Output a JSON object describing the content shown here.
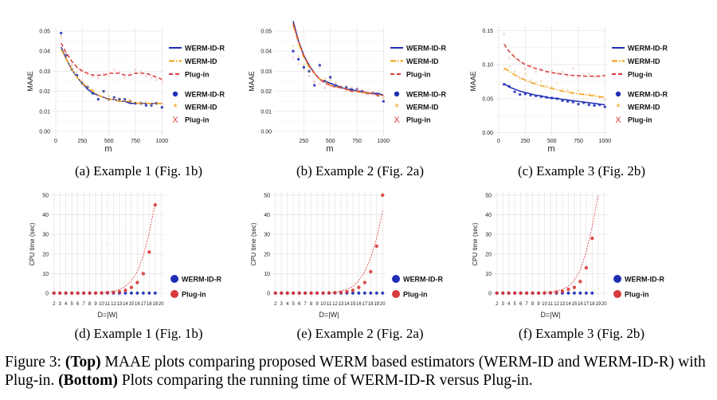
{
  "colors": {
    "werm_id_r": "#1f2fb5",
    "werm_id": "#f39c12",
    "plugin": "#d83b3b",
    "plugin_light": "#f2b3b3",
    "grid": "#e6e6e6"
  },
  "legend_top": {
    "lines": [
      "WERM-ID-R",
      "WERM-ID",
      "Plug-in"
    ],
    "points": [
      "WERM-ID-R",
      "WERM-ID",
      "Plug-in"
    ]
  },
  "legend_bottom": [
    "WERM-ID-R",
    "Plug-in"
  ],
  "captions": {
    "a": "(a) Example 1 (Fig. 1b)",
    "b": "(b) Example 2 (Fig. 2a)",
    "c": "(c) Example 3 (Fig. 2b)",
    "d": "(d) Example 1 (Fig. 1b)",
    "e": "(e) Example 2 (Fig. 2a)",
    "f": "(f) Example 3 (Fig. 2b)"
  },
  "figure_caption": {
    "label": "Figure 3:",
    "top_bold": "(Top)",
    "top_text": "MAAE plots comparing proposed WERM based estimators (WERM-ID and WERM-ID-R) with Plug-in.",
    "bottom_bold": "(Bottom)",
    "bottom_text": "Plots comparing the running time of WERM-ID-R versus Plug-in."
  },
  "chart_data": [
    {
      "id": "a",
      "type": "scatter",
      "title": "",
      "xlabel": "m",
      "ylabel": "MAAE",
      "xlim": [
        -30,
        1020
      ],
      "ylim": [
        -0.002,
        0.052
      ],
      "xticks": [
        0,
        250,
        500,
        750,
        1000
      ],
      "yticks": [
        0,
        0.01,
        0.02,
        0.03,
        0.04,
        0.05
      ],
      "ytick_labels": [
        "0.00",
        "0.01",
        "0.02",
        "0.03",
        "0.04",
        "0.05"
      ],
      "x": [
        50,
        100,
        150,
        200,
        250,
        300,
        350,
        400,
        450,
        500,
        550,
        600,
        650,
        700,
        750,
        800,
        850,
        900,
        950,
        1000
      ],
      "series": [
        {
          "name": "WERM-ID-R",
          "points": [
            0.049,
            0.038,
            0.031,
            0.028,
            0.024,
            0.022,
            0.019,
            0.016,
            0.02,
            0.016,
            0.017,
            0.016,
            0.016,
            0.015,
            0.014,
            0.014,
            0.013,
            0.013,
            0.014,
            0.012
          ],
          "fit": [
            0.042,
            0.036,
            0.031,
            0.027,
            0.024,
            0.021,
            0.019,
            0.018,
            0.017,
            0.016,
            0.016,
            0.015,
            0.015,
            0.014,
            0.014,
            0.014,
            0.014,
            0.014,
            0.014,
            0.014
          ]
        },
        {
          "name": "WERM-ID",
          "points": [
            0.047,
            0.037,
            0.032,
            0.029,
            0.025,
            0.022,
            0.02,
            0.017,
            0.019,
            0.017,
            0.016,
            0.016,
            0.015,
            0.015,
            0.014,
            0.014,
            0.014,
            0.013,
            0.013,
            0.013
          ],
          "fit": [
            0.041,
            0.036,
            0.031,
            0.027,
            0.024,
            0.022,
            0.02,
            0.018,
            0.017,
            0.016,
            0.016,
            0.015,
            0.015,
            0.015,
            0.014,
            0.014,
            0.014,
            0.014,
            0.014,
            0.014
          ]
        },
        {
          "name": "Plug-in",
          "points": [
            0.047,
            0.039,
            0.034,
            0.032,
            0.031,
            0.029,
            0.028,
            0.027,
            0.029,
            0.028,
            0.031,
            0.03,
            0.027,
            0.029,
            0.031,
            0.03,
            0.028,
            0.027,
            0.026,
            0.025
          ],
          "fit": [
            0.044,
            0.039,
            0.035,
            0.032,
            0.03,
            0.029,
            0.028,
            0.028,
            0.028,
            0.029,
            0.029,
            0.029,
            0.028,
            0.028,
            0.029,
            0.029,
            0.029,
            0.028,
            0.027,
            0.026
          ]
        }
      ]
    },
    {
      "id": "b",
      "type": "scatter",
      "title": "",
      "xlabel": "m",
      "ylabel": "MAAE",
      "xlim": [
        -30,
        1020
      ],
      "ylim": [
        -0.002,
        0.052
      ],
      "xticks": [
        250,
        500,
        750,
        1000
      ],
      "yticks": [
        0,
        0.01,
        0.02,
        0.03,
        0.04,
        0.05
      ],
      "ytick_labels": [
        "0.00",
        "0.01",
        "0.02",
        "0.03",
        "0.04",
        "0.05"
      ],
      "x": [
        150,
        200,
        250,
        300,
        350,
        400,
        450,
        500,
        550,
        600,
        650,
        700,
        750,
        800,
        850,
        900,
        950,
        1000
      ],
      "series": [
        {
          "name": "WERM-ID-R",
          "points": [
            0.04,
            0.036,
            0.032,
            0.03,
            0.023,
            0.033,
            0.025,
            0.027,
            0.023,
            0.022,
            0.022,
            0.021,
            0.021,
            0.02,
            0.019,
            0.019,
            0.018,
            0.015
          ],
          "fit": [
            0.055,
            0.045,
            0.038,
            0.033,
            0.029,
            0.026,
            0.025,
            0.024,
            0.023,
            0.022,
            0.021,
            0.021,
            0.02,
            0.02,
            0.019,
            0.019,
            0.019,
            0.018
          ]
        },
        {
          "name": "WERM-ID",
          "points": [
            0.042,
            0.037,
            0.033,
            0.029,
            0.024,
            0.031,
            0.026,
            0.025,
            0.024,
            0.022,
            0.022,
            0.021,
            0.02,
            0.02,
            0.019,
            0.019,
            0.018,
            0.016
          ],
          "fit": [
            0.053,
            0.044,
            0.037,
            0.032,
            0.029,
            0.026,
            0.025,
            0.023,
            0.022,
            0.022,
            0.021,
            0.02,
            0.02,
            0.019,
            0.019,
            0.019,
            0.018,
            0.018
          ]
        },
        {
          "name": "Plug-in",
          "points": [
            0.037,
            0.034,
            0.031,
            0.028,
            0.025,
            0.024,
            0.022,
            0.023,
            0.024,
            0.022,
            0.021,
            0.022,
            0.021,
            0.02,
            0.019,
            0.019,
            0.018,
            0.017
          ],
          "fit": [
            0.054,
            0.045,
            0.038,
            0.033,
            0.029,
            0.026,
            0.024,
            0.023,
            0.022,
            0.022,
            0.021,
            0.02,
            0.02,
            0.02,
            0.019,
            0.019,
            0.018,
            0.018
          ]
        }
      ]
    },
    {
      "id": "c",
      "type": "scatter",
      "title": "",
      "xlabel": "m",
      "ylabel": "MAAE",
      "xlim": [
        -30,
        1020
      ],
      "ylim": [
        -0.004,
        0.155
      ],
      "xticks": [
        0,
        250,
        500,
        750,
        1000
      ],
      "yticks": [
        0,
        0.05,
        0.1,
        0.15
      ],
      "ytick_labels": [
        "0.00",
        "0.05",
        "0.10",
        "0.15"
      ],
      "x": [
        50,
        100,
        150,
        200,
        250,
        300,
        350,
        400,
        450,
        500,
        550,
        600,
        650,
        700,
        750,
        800,
        850,
        900,
        950,
        1000
      ],
      "series": [
        {
          "name": "WERM-ID-R",
          "points": [
            0.071,
            0.068,
            0.06,
            0.056,
            0.057,
            0.055,
            0.054,
            0.053,
            0.052,
            0.051,
            0.05,
            0.047,
            0.046,
            0.045,
            0.042,
            0.044,
            0.041,
            0.04,
            0.041,
            0.038
          ],
          "fit": [
            0.072,
            0.067,
            0.064,
            0.061,
            0.059,
            0.057,
            0.055,
            0.054,
            0.052,
            0.051,
            0.05,
            0.049,
            0.048,
            0.047,
            0.046,
            0.045,
            0.044,
            0.043,
            0.042,
            0.041
          ]
        },
        {
          "name": "WERM-ID",
          "points": [
            0.09,
            0.095,
            0.088,
            0.077,
            0.085,
            0.075,
            0.072,
            0.074,
            0.068,
            0.066,
            0.07,
            0.062,
            0.061,
            0.058,
            0.06,
            0.055,
            0.055,
            0.054,
            0.05,
            0.047
          ],
          "fit": [
            0.095,
            0.09,
            0.085,
            0.081,
            0.077,
            0.074,
            0.071,
            0.069,
            0.067,
            0.065,
            0.063,
            0.061,
            0.06,
            0.058,
            0.057,
            0.056,
            0.055,
            0.054,
            0.053,
            0.052
          ]
        },
        {
          "name": "Plug-in",
          "points": [
            0.145,
            0.11,
            0.11,
            0.105,
            0.095,
            0.1,
            0.09,
            0.095,
            0.089,
            0.092,
            0.088,
            0.09,
            0.085,
            0.095,
            0.082,
            0.086,
            0.087,
            0.083,
            0.084,
            0.085
          ],
          "fit": [
            0.13,
            0.119,
            0.111,
            0.105,
            0.1,
            0.097,
            0.094,
            0.092,
            0.09,
            0.088,
            0.087,
            0.086,
            0.085,
            0.084,
            0.084,
            0.083,
            0.083,
            0.083,
            0.083,
            0.084
          ]
        }
      ]
    },
    {
      "id": "d",
      "type": "scatter",
      "title": "",
      "xlabel": "D=|W|",
      "ylabel": "CPU time (sec)",
      "xlim": [
        1.5,
        20.5
      ],
      "ylim": [
        -2,
        52
      ],
      "xticks": [
        2,
        3,
        4,
        5,
        6,
        7,
        8,
        9,
        10,
        11,
        12,
        13,
        14,
        15,
        16,
        17,
        18,
        19,
        20
      ],
      "yticks": [
        0,
        10,
        20,
        30,
        40,
        50
      ],
      "ytick_labels": [
        "0",
        "10",
        "20",
        "30",
        "40",
        "50"
      ],
      "x": [
        2,
        3,
        4,
        5,
        6,
        7,
        8,
        9,
        10,
        11,
        12,
        13,
        14,
        15,
        16,
        17,
        18,
        19
      ],
      "series": [
        {
          "name": "WERM-ID-R",
          "points": [
            0.1,
            0.1,
            0.1,
            0.1,
            0.1,
            0.1,
            0.1,
            0.1,
            0.1,
            0.1,
            0.1,
            0.1,
            0.1,
            0.1,
            0.1,
            0.1,
            0.1,
            0.1
          ]
        },
        {
          "name": "Plug-in",
          "points": [
            0.1,
            0.1,
            0.1,
            0.1,
            0.1,
            0.1,
            0.1,
            0.1,
            0.2,
            0.3,
            0.5,
            0.8,
            1.5,
            3,
            5.5,
            10,
            21,
            45
          ]
        }
      ],
      "fit": {
        "x": [
          10,
          11,
          12,
          13,
          14,
          15,
          16,
          17,
          18,
          19
        ],
        "y": [
          0.3,
          0.6,
          1.1,
          2,
          3.5,
          6.5,
          11,
          19,
          31,
          46
        ]
      }
    },
    {
      "id": "e",
      "type": "scatter",
      "title": "",
      "xlabel": "D=|W|",
      "ylabel": "CPU time (sec)",
      "xlim": [
        1.5,
        20.5
      ],
      "ylim": [
        -2,
        52
      ],
      "xticks": [
        2,
        3,
        4,
        5,
        6,
        7,
        8,
        9,
        10,
        11,
        12,
        13,
        14,
        15,
        16,
        17,
        18,
        19,
        20
      ],
      "yticks": [
        0,
        10,
        20,
        30,
        40,
        50
      ],
      "ytick_labels": [
        "0",
        "10",
        "20",
        "30",
        "40",
        "50"
      ],
      "x": [
        2,
        3,
        4,
        5,
        6,
        7,
        8,
        9,
        10,
        11,
        12,
        13,
        14,
        15,
        16,
        17,
        18,
        19,
        20
      ],
      "series": [
        {
          "name": "WERM-ID-R",
          "points": [
            0.1,
            0.1,
            0.1,
            0.1,
            0.1,
            0.1,
            0.1,
            0.1,
            0.1,
            0.1,
            0.1,
            0.1,
            0.1,
            0.1,
            0.1,
            0.1,
            0.1,
            0.1,
            0.1
          ]
        },
        {
          "name": "Plug-in",
          "points": [
            0.1,
            0.1,
            0.1,
            0.1,
            0.1,
            0.1,
            0.1,
            0.1,
            0.1,
            0.2,
            0.3,
            0.5,
            0.8,
            1.5,
            3,
            5.5,
            11,
            24,
            50
          ]
        }
      ],
      "fit": {
        "x": [
          11,
          12,
          13,
          14,
          15,
          16,
          17,
          18,
          19,
          20
        ],
        "y": [
          0.3,
          0.6,
          1.1,
          2,
          3.5,
          6.5,
          11,
          18,
          28,
          42
        ]
      }
    },
    {
      "id": "f",
      "type": "scatter",
      "title": "",
      "xlabel": "D=|W|",
      "ylabel": "CPU time (sec)",
      "xlim": [
        1.5,
        20.5
      ],
      "ylim": [
        -2,
        52
      ],
      "xticks": [
        2,
        3,
        4,
        5,
        6,
        7,
        8,
        9,
        10,
        11,
        12,
        13,
        14,
        15,
        16,
        17,
        18,
        19,
        20
      ],
      "yticks": [
        0,
        10,
        20,
        30,
        40,
        50
      ],
      "ytick_labels": [
        "0",
        "10",
        "20",
        "30",
        "40",
        "50"
      ],
      "x": [
        2,
        3,
        4,
        5,
        6,
        7,
        8,
        9,
        10,
        11,
        12,
        13,
        14,
        15,
        16,
        17,
        18
      ],
      "series": [
        {
          "name": "WERM-ID-R",
          "points": [
            0.1,
            0.1,
            0.1,
            0.1,
            0.1,
            0.1,
            0.1,
            0.1,
            0.1,
            0.1,
            0.1,
            0.1,
            0.1,
            0.1,
            0.1,
            0.1,
            0.1
          ]
        },
        {
          "name": "Plug-in",
          "points": [
            0.1,
            0.1,
            0.1,
            0.1,
            0.1,
            0.1,
            0.1,
            0.1,
            0.2,
            0.3,
            0.6,
            1,
            2,
            3,
            6,
            13,
            28
          ]
        }
      ],
      "fit": {
        "x": [
          10,
          11,
          12,
          13,
          14,
          15,
          16,
          17,
          18,
          19
        ],
        "y": [
          0.3,
          0.6,
          1.1,
          2,
          3.5,
          6.5,
          12,
          21,
          34,
          50
        ]
      }
    }
  ]
}
